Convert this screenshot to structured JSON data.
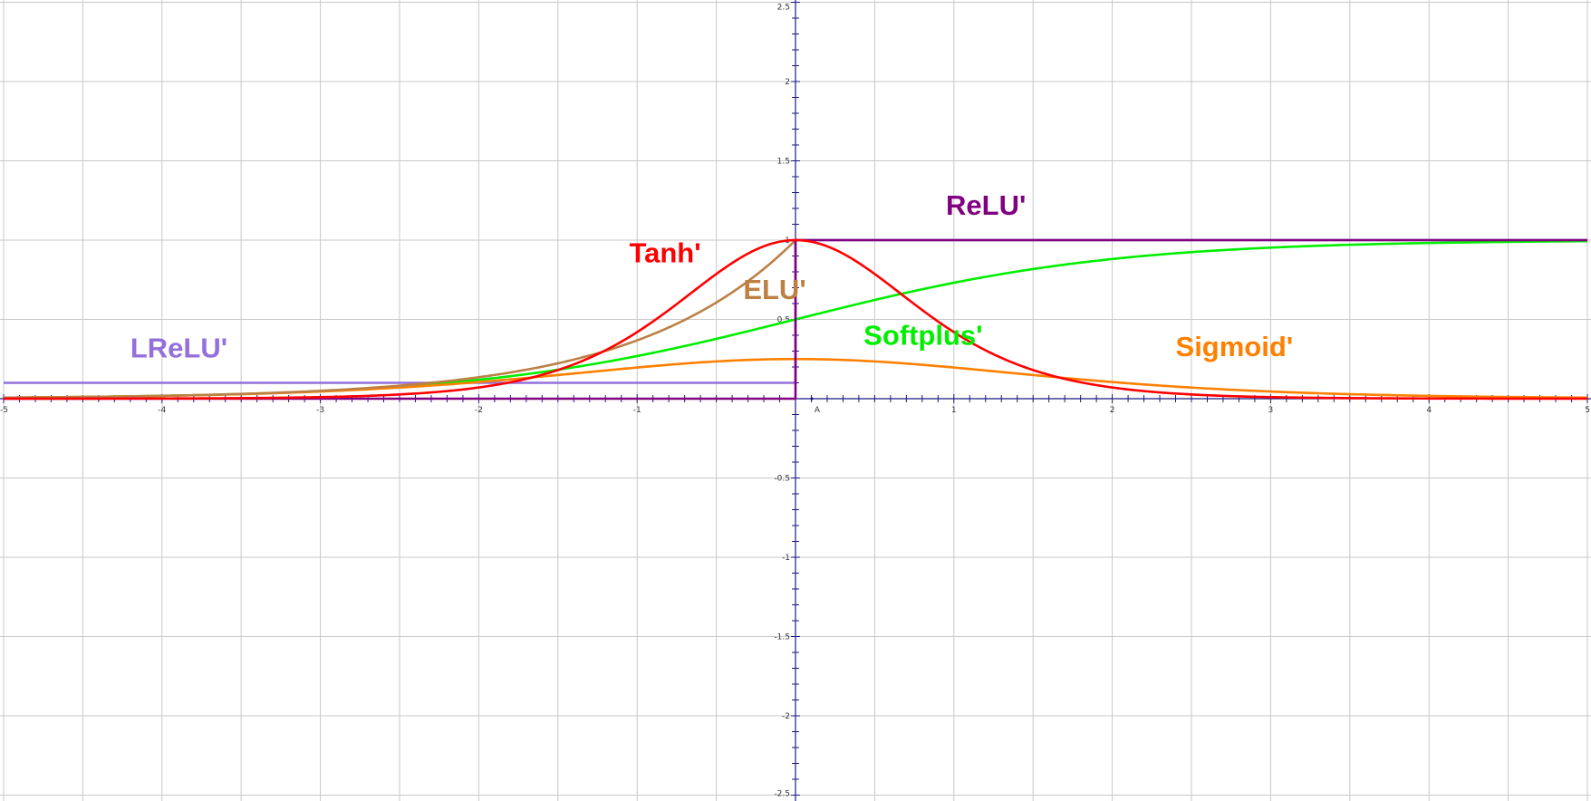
{
  "chart_data": {
    "type": "line",
    "title": "",
    "xlabel": "",
    "ylabel": "",
    "xlim": [
      -5,
      5
    ],
    "ylim": [
      -2.5,
      2.5
    ],
    "grid": true,
    "x_ticks_major": [
      -5,
      -4,
      -3,
      -2,
      -1,
      1,
      2,
      3,
      4,
      5
    ],
    "x_tick_labels": [
      "-5",
      "-4",
      "-3",
      "-2",
      "-1",
      "1",
      "2",
      "3",
      "4",
      "5"
    ],
    "y_ticks_major": [
      2.5,
      2,
      1.5,
      1,
      0.5,
      -0.5,
      -1,
      -1.5,
      -2,
      -2.5
    ],
    "y_tick_labels": [
      "2.5",
      "2",
      "1.5",
      "1",
      "0.5",
      "-0.5",
      "-1",
      "-1.5",
      "-2",
      "-2.5"
    ],
    "point_label": "A",
    "series": [
      {
        "name": "ReLU'",
        "function": "relu_derivative",
        "color": "#800080",
        "x": [
          -5,
          0,
          0,
          5
        ],
        "y": [
          0,
          0,
          1,
          1
        ]
      },
      {
        "name": "LReLU'",
        "function": "leaky_relu_derivative",
        "color": "#9370db",
        "x": [
          -5,
          0,
          0,
          5
        ],
        "y": [
          0.1,
          0.1,
          1,
          1
        ]
      },
      {
        "name": "Tanh'",
        "function": "tanh_derivative",
        "color": "#ff0000",
        "x": [
          -5,
          -3,
          -2,
          -1.5,
          -1,
          -0.5,
          0,
          0.5,
          1,
          1.5,
          2,
          3,
          5
        ],
        "y": [
          0.0002,
          0.0099,
          0.0707,
          0.1807,
          0.42,
          0.7864,
          1,
          0.7864,
          0.42,
          0.1807,
          0.0707,
          0.0099,
          0.0002
        ]
      },
      {
        "name": "ELU'",
        "function": "elu_derivative",
        "color": "#bc8044",
        "x": [
          -5,
          -3,
          -2,
          -1.5,
          -1,
          -0.5,
          0
        ],
        "y": [
          0.0067,
          0.0498,
          0.1353,
          0.2231,
          0.3679,
          0.6065,
          1
        ]
      },
      {
        "name": "Softplus'",
        "function": "softplus_derivative",
        "color": "#00ee00",
        "x": [
          -5,
          -3,
          -2,
          -1,
          0,
          1,
          2,
          3,
          5
        ],
        "y": [
          0.0067,
          0.0474,
          0.1192,
          0.2689,
          0.5,
          0.7311,
          0.8808,
          0.9526,
          0.9933
        ]
      },
      {
        "name": "Sigmoid'",
        "function": "sigmoid_derivative",
        "color": "#ff8000",
        "x": [
          -5,
          -3,
          -2,
          -1,
          0,
          1,
          2,
          3,
          5
        ],
        "y": [
          0.0066,
          0.0452,
          0.105,
          0.1966,
          0.25,
          0.1966,
          0.105,
          0.0452,
          0.0066
        ]
      }
    ],
    "annotations": [
      {
        "text": "ReLU'",
        "color": "#800080",
        "x": 0.95,
        "y": 1.16
      },
      {
        "text": "Tanh'",
        "color": "#ff0000",
        "x": -1.05,
        "y": 0.86
      },
      {
        "text": "ELU'",
        "color": "#bc8044",
        "x": -0.33,
        "y": 0.63
      },
      {
        "text": "Softplus'",
        "color": "#00ee00",
        "x": 0.43,
        "y": 0.34
      },
      {
        "text": "Sigmoid'",
        "color": "#ff8000",
        "x": 2.4,
        "y": 0.27
      },
      {
        "text": "LReLU'",
        "color": "#9370db",
        "x": -4.2,
        "y": 0.26
      }
    ]
  },
  "colors": {
    "grid": "#c8c8c8",
    "axis": "#1a1a80",
    "background": "#ffffff"
  }
}
